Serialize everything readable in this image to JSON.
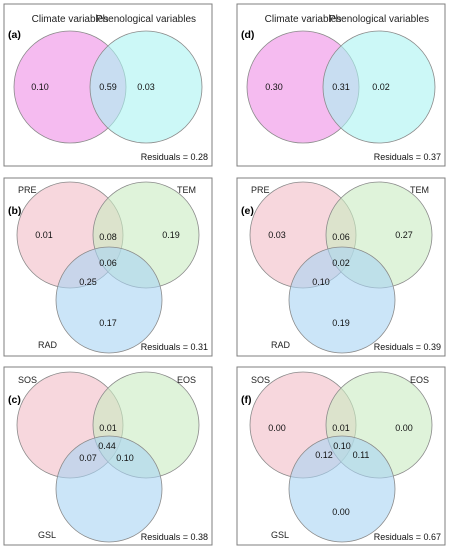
{
  "colors": {
    "pink_two_set": "#ee8ee6",
    "cyan_two_set": "#aaf3f1",
    "red_three": "#f2bcc6",
    "green_three": "#c9ebc2",
    "blue_three": "#a9d3f3",
    "frame": "#7f7f7f"
  },
  "panels": {
    "a": {
      "label": "(a)",
      "set1": "Climate variables",
      "set2": "Phenological variables",
      "only1": "0.10",
      "both": "0.59",
      "only2": "0.03",
      "residuals": "Residuals = 0.28"
    },
    "d": {
      "label": "(d)",
      "set1": "Climate variables",
      "set2": "Phenological variables",
      "only1": "0.30",
      "both": "0.31",
      "only2": "0.02",
      "residuals": "Residuals = 0.37"
    },
    "b": {
      "label": "(b)",
      "set1": "PRE",
      "set2": "TEM",
      "set3": "RAD",
      "only1": "0.01",
      "only2": "0.19",
      "only3": "0.17",
      "s12": "0.08",
      "s13": "0.25",
      "s23": "",
      "s123": "0.06",
      "residuals": "Residuals = 0.31"
    },
    "e": {
      "label": "(e)",
      "set1": "PRE",
      "set2": "TEM",
      "set3": "RAD",
      "only1": "0.03",
      "only2": "0.27",
      "only3": "0.19",
      "s12": "0.06",
      "s13": "0.10",
      "s23": "",
      "s123": "0.02",
      "residuals": "Residuals = 0.39"
    },
    "c": {
      "label": "(c)",
      "set1": "SOS",
      "set2": "EOS",
      "set3": "GSL",
      "only1": "",
      "only2": "",
      "only3": "",
      "s12": "0.01",
      "s13": "0.07",
      "s23": "0.10",
      "s123": "0.44",
      "residuals": "Residuals = 0.38"
    },
    "f": {
      "label": "(f)",
      "set1": "SOS",
      "set2": "EOS",
      "set3": "GSL",
      "only1": "0.00",
      "only2": "0.00",
      "only3": "0.00",
      "s12": "0.01",
      "s13": "0.12",
      "s23": "0.11",
      "s123": "0.10",
      "residuals": "Residuals = 0.67"
    }
  }
}
